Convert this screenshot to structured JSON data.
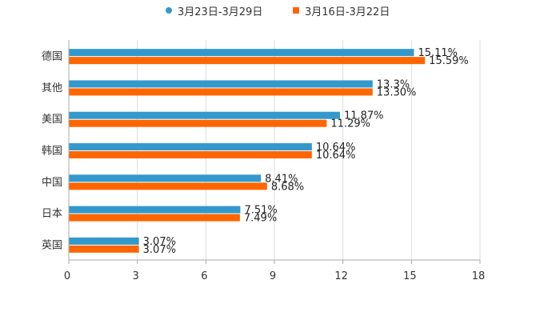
{
  "chart_data": {
    "type": "bar",
    "orientation": "horizontal",
    "title": "",
    "categories": [
      "德国",
      "其他",
      "美国",
      "韩国",
      "中国",
      "日本",
      "英国"
    ],
    "series": [
      {
        "name": "3月23日-3月29日",
        "color": "#3399cc",
        "values": [
          15.11,
          13.3,
          11.87,
          10.64,
          8.41,
          7.51,
          3.07
        ],
        "labels": [
          "15.11%",
          "13.3%",
          "11.87%",
          "10.64%",
          "8.41%",
          "7.51%",
          "3.07%"
        ]
      },
      {
        "name": "3月16日-3月22日",
        "color": "#ff6600",
        "values": [
          15.59,
          13.3,
          11.29,
          10.64,
          8.68,
          7.49,
          3.07
        ],
        "labels": [
          "15.59%",
          "13.30%",
          "11.29%",
          "10.64%",
          "8.68%",
          "7.49%",
          "3.07%"
        ]
      }
    ],
    "xlim": [
      0,
      18
    ],
    "xticks": [
      "0",
      "3",
      "6",
      "9",
      "12",
      "15",
      "18"
    ],
    "xlabel": "",
    "ylabel": "",
    "grid": true,
    "legend_position": "top-center"
  }
}
